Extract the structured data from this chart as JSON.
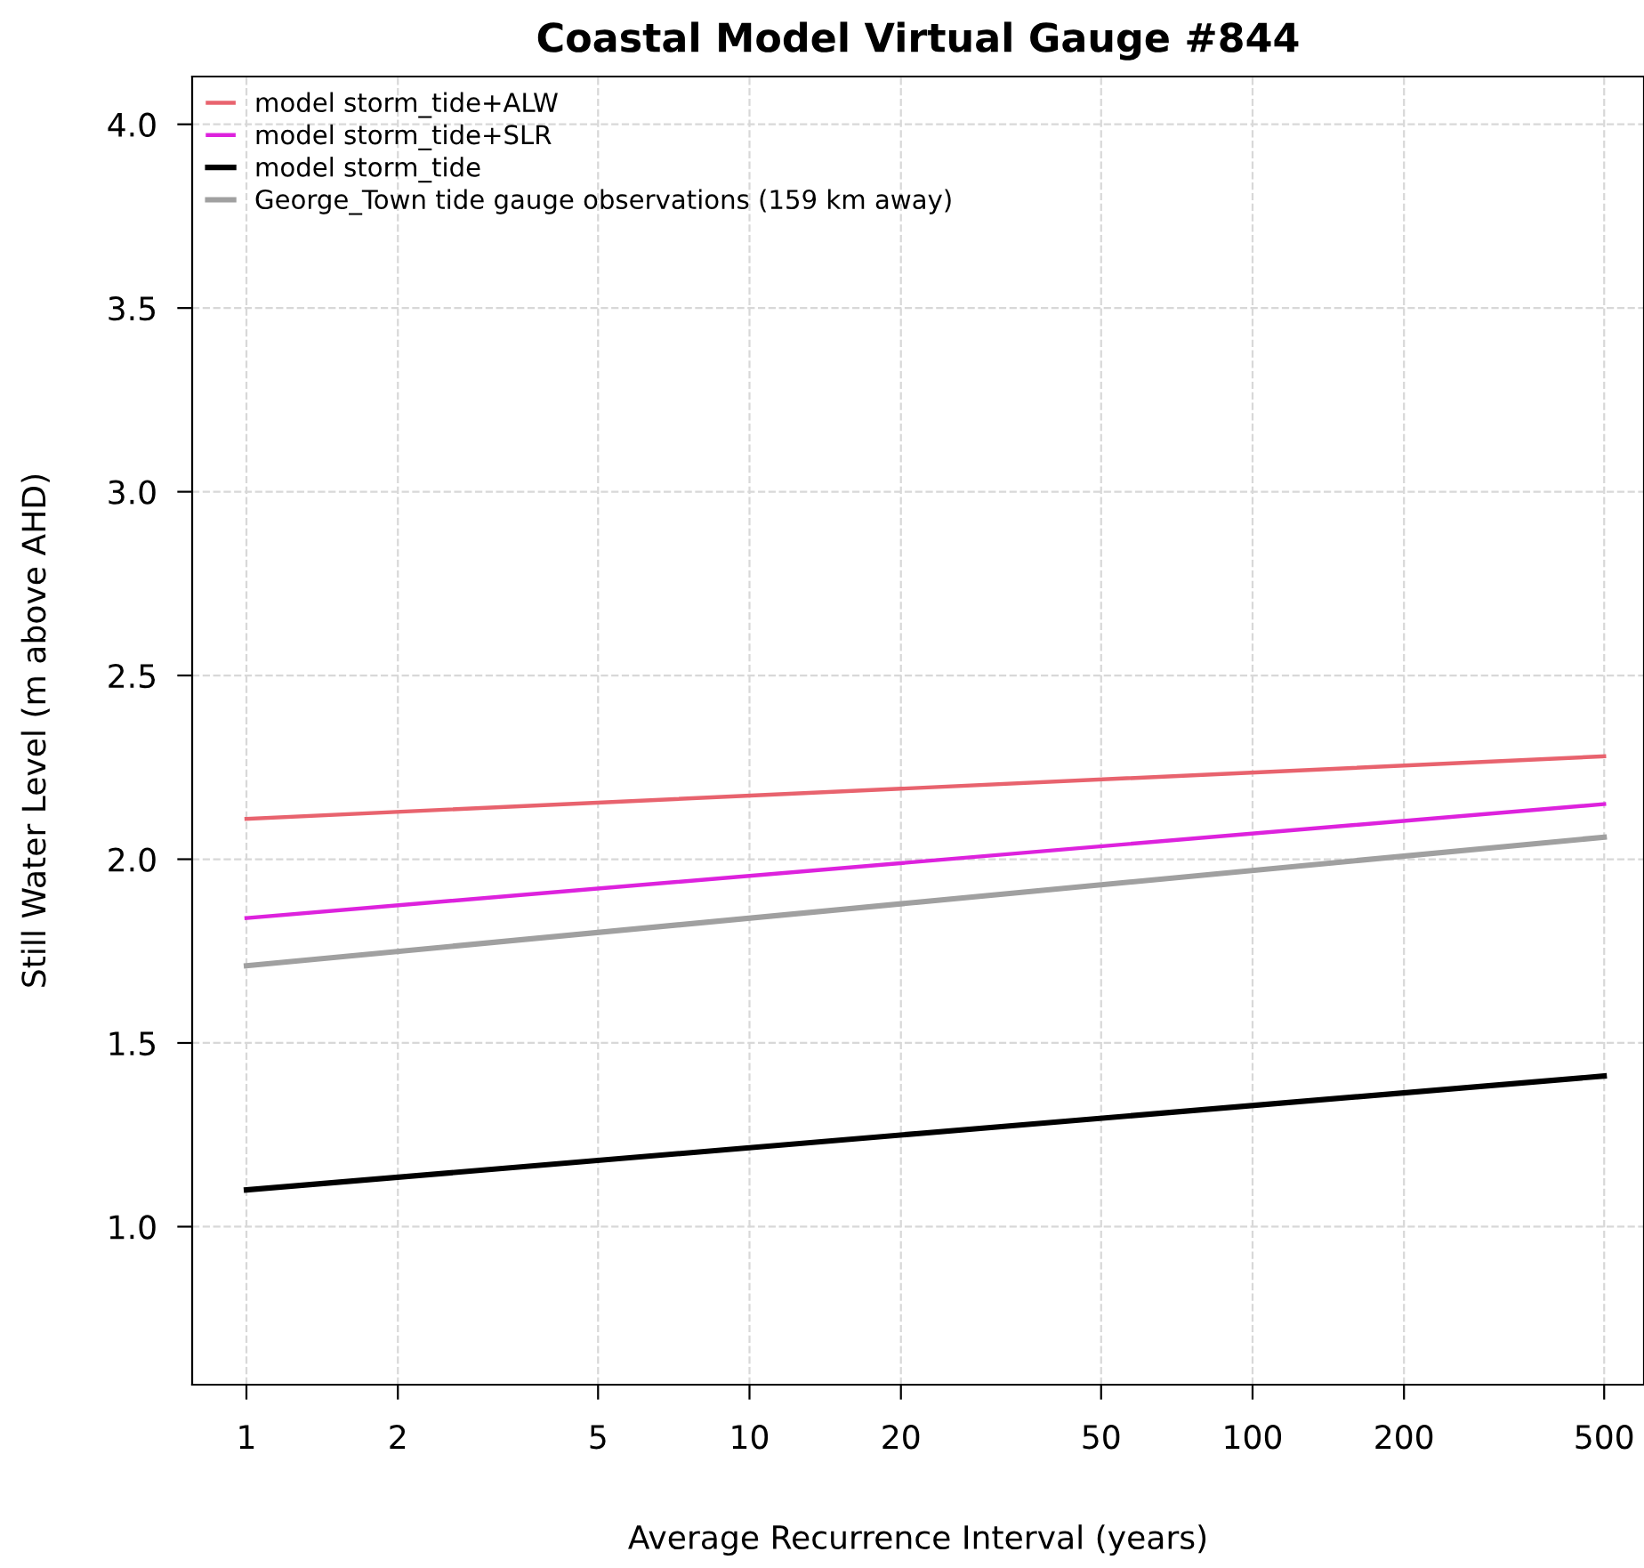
{
  "chart_data": {
    "type": "line",
    "title": "Coastal Model Virtual Gauge #844",
    "xlabel": "Average Recurrence Interval (years)",
    "ylabel": "Still Water Level (m above AHD)",
    "log": "x",
    "xlim": [
      0.78,
      600
    ],
    "xticks": [
      1,
      2,
      5,
      10,
      20,
      50,
      100,
      200,
      500
    ],
    "ylim": [
      0.57,
      4.13
    ],
    "yticks": [
      {
        "value": 1,
        "label": "1.0"
      },
      1.5,
      {
        "value": 2,
        "label": "2.0"
      },
      2.5,
      {
        "value": 3,
        "label": "3.0"
      },
      3.5,
      {
        "value": 4,
        "label": "4.0"
      }
    ],
    "x": [
      1,
      500
    ],
    "grid": true,
    "legend": "top left",
    "line_style": "solid",
    "marker": "none",
    "series": [
      {
        "name": "model storm_tide+ALW",
        "color": "#e8636e",
        "values": [
          2.11,
          2.28
        ]
      },
      {
        "name": "model storm_tide+SLR",
        "color": "#dd22dd",
        "values": [
          1.84,
          2.15
        ]
      },
      {
        "name": "model storm_tide",
        "color": "#000000",
        "values": [
          1.1,
          1.41
        ]
      },
      {
        "name": "George_Town tide gauge observations (159 km away)",
        "color": "#a0a0a0",
        "values": [
          1.71,
          2.06
        ]
      }
    ]
  }
}
